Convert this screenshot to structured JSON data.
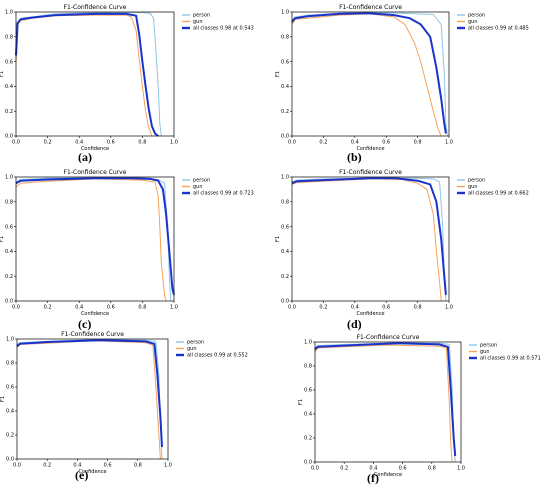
{
  "chart_data": [
    {
      "type": "line",
      "panel_label": "(a)",
      "title": "F1-Confidence Curve",
      "xlabel": "Confidence",
      "ylabel": "F1",
      "xlim": [
        0,
        1
      ],
      "ylim": [
        0,
        1
      ],
      "x_ticks": [
        "0.0",
        "0.2",
        "0.4",
        "0.6",
        "0.8",
        "1.0"
      ],
      "y_ticks": [
        "0.0",
        "0.2",
        "0.4",
        "0.6",
        "0.8",
        "1.0"
      ],
      "grid": false,
      "legend": "top-right",
      "series": [
        {
          "name": "person",
          "color": "#8ec5e6",
          "width": 1,
          "points": [
            [
              0.0,
              0.68
            ],
            [
              0.01,
              0.92
            ],
            [
              0.03,
              0.95
            ],
            [
              0.1,
              0.96
            ],
            [
              0.25,
              0.985
            ],
            [
              0.5,
              0.995
            ],
            [
              0.7,
              0.995
            ],
            [
              0.8,
              0.995
            ],
            [
              0.85,
              0.99
            ],
            [
              0.87,
              0.95
            ],
            [
              0.88,
              0.8
            ],
            [
              0.9,
              0.4
            ],
            [
              0.91,
              0.1
            ],
            [
              0.92,
              0.0
            ]
          ]
        },
        {
          "name": "gun",
          "color": "#f5a35b",
          "width": 1,
          "points": [
            [
              0.0,
              0.6
            ],
            [
              0.01,
              0.9
            ],
            [
              0.03,
              0.93
            ],
            [
              0.1,
              0.95
            ],
            [
              0.25,
              0.97
            ],
            [
              0.5,
              0.975
            ],
            [
              0.7,
              0.975
            ],
            [
              0.73,
              0.96
            ],
            [
              0.76,
              0.85
            ],
            [
              0.78,
              0.62
            ],
            [
              0.8,
              0.4
            ],
            [
              0.82,
              0.2
            ],
            [
              0.84,
              0.07
            ],
            [
              0.86,
              0.0
            ]
          ]
        },
        {
          "name": "all classes 0.98 at 0.543",
          "color": "#1a33cc",
          "width": 2,
          "points": [
            [
              0.0,
              0.65
            ],
            [
              0.01,
              0.91
            ],
            [
              0.03,
              0.94
            ],
            [
              0.1,
              0.955
            ],
            [
              0.25,
              0.975
            ],
            [
              0.5,
              0.985
            ],
            [
              0.7,
              0.985
            ],
            [
              0.76,
              0.97
            ],
            [
              0.78,
              0.82
            ],
            [
              0.8,
              0.6
            ],
            [
              0.82,
              0.4
            ],
            [
              0.84,
              0.22
            ],
            [
              0.86,
              0.08
            ],
            [
              0.88,
              0.02
            ],
            [
              0.9,
              0.0
            ]
          ]
        }
      ]
    },
    {
      "type": "line",
      "panel_label": "(b)",
      "title": "F1-Confidence Curve",
      "xlabel": "Confidence",
      "ylabel": "F1",
      "xlim": [
        0,
        1
      ],
      "ylim": [
        0,
        1
      ],
      "x_ticks": [
        "0.0",
        "0.2",
        "0.4",
        "0.6",
        "0.8",
        "1.0"
      ],
      "y_ticks": [
        "0.0",
        "0.2",
        "0.4",
        "0.6",
        "0.8",
        "1.0"
      ],
      "grid": false,
      "legend": "top-right",
      "series": [
        {
          "name": "person",
          "color": "#8ec5e6",
          "width": 1,
          "points": [
            [
              0.0,
              0.93
            ],
            [
              0.02,
              0.96
            ],
            [
              0.1,
              0.975
            ],
            [
              0.3,
              0.99
            ],
            [
              0.5,
              0.995
            ],
            [
              0.7,
              0.99
            ],
            [
              0.8,
              0.985
            ],
            [
              0.9,
              0.98
            ],
            [
              0.95,
              0.9
            ],
            [
              0.97,
              0.5
            ],
            [
              0.98,
              0.1
            ],
            [
              0.99,
              0.0
            ]
          ]
        },
        {
          "name": "gun",
          "color": "#f5a35b",
          "width": 1,
          "points": [
            [
              0.0,
              0.9
            ],
            [
              0.02,
              0.94
            ],
            [
              0.1,
              0.95
            ],
            [
              0.3,
              0.975
            ],
            [
              0.5,
              0.985
            ],
            [
              0.65,
              0.96
            ],
            [
              0.72,
              0.9
            ],
            [
              0.78,
              0.75
            ],
            [
              0.82,
              0.6
            ],
            [
              0.86,
              0.4
            ],
            [
              0.9,
              0.2
            ],
            [
              0.93,
              0.06
            ],
            [
              0.95,
              0.0
            ]
          ]
        },
        {
          "name": "all classes 0.99 at 0.485",
          "color": "#1a33cc",
          "width": 2,
          "points": [
            [
              0.0,
              0.92
            ],
            [
              0.02,
              0.95
            ],
            [
              0.1,
              0.965
            ],
            [
              0.3,
              0.985
            ],
            [
              0.485,
              0.99
            ],
            [
              0.65,
              0.975
            ],
            [
              0.75,
              0.95
            ],
            [
              0.82,
              0.9
            ],
            [
              0.88,
              0.8
            ],
            [
              0.92,
              0.55
            ],
            [
              0.95,
              0.3
            ],
            [
              0.97,
              0.1
            ],
            [
              0.98,
              0.02
            ]
          ]
        }
      ]
    },
    {
      "type": "line",
      "panel_label": "(c)",
      "title": "F1-Confidence Curve",
      "xlabel": "Confidence",
      "ylabel": "F1",
      "xlim": [
        0,
        1
      ],
      "ylim": [
        0,
        1
      ],
      "x_ticks": [
        "0.0",
        "0.2",
        "0.4",
        "0.6",
        "0.8",
        "1.0"
      ],
      "y_ticks": [
        "0.0",
        "0.2",
        "0.4",
        "0.6",
        "0.8",
        "1.0"
      ],
      "grid": false,
      "legend": "top-right",
      "series": [
        {
          "name": "person",
          "color": "#8ec5e6",
          "width": 1,
          "points": [
            [
              0.0,
              0.96
            ],
            [
              0.03,
              0.98
            ],
            [
              0.2,
              0.99
            ],
            [
              0.5,
              0.995
            ],
            [
              0.8,
              0.99
            ],
            [
              0.9,
              0.98
            ],
            [
              0.94,
              0.95
            ],
            [
              0.96,
              0.6
            ],
            [
              0.97,
              0.2
            ],
            [
              0.98,
              0.0
            ]
          ]
        },
        {
          "name": "gun",
          "color": "#f5a35b",
          "width": 1,
          "points": [
            [
              0.0,
              0.92
            ],
            [
              0.03,
              0.95
            ],
            [
              0.2,
              0.965
            ],
            [
              0.5,
              0.985
            ],
            [
              0.8,
              0.975
            ],
            [
              0.88,
              0.96
            ],
            [
              0.9,
              0.85
            ],
            [
              0.91,
              0.6
            ],
            [
              0.92,
              0.3
            ],
            [
              0.94,
              0.05
            ],
            [
              0.95,
              0.0
            ]
          ]
        },
        {
          "name": "all classes 0.99 at 0.723",
          "color": "#1a33cc",
          "width": 2,
          "points": [
            [
              0.0,
              0.95
            ],
            [
              0.03,
              0.97
            ],
            [
              0.2,
              0.98
            ],
            [
              0.5,
              0.99
            ],
            [
              0.723,
              0.99
            ],
            [
              0.85,
              0.985
            ],
            [
              0.9,
              0.97
            ],
            [
              0.93,
              0.9
            ],
            [
              0.95,
              0.7
            ],
            [
              0.97,
              0.4
            ],
            [
              0.99,
              0.1
            ],
            [
              1.0,
              0.05
            ]
          ]
        }
      ]
    },
    {
      "type": "line",
      "panel_label": "(d)",
      "title": "F1-Confidence Curve",
      "xlabel": "Confidence",
      "ylabel": "F1",
      "xlim": [
        0,
        1
      ],
      "ylim": [
        0,
        1
      ],
      "x_ticks": [
        "0.0",
        "0.2",
        "0.4",
        "0.6",
        "0.8",
        "1.0"
      ],
      "y_ticks": [
        "0.0",
        "0.2",
        "0.4",
        "0.6",
        "0.8",
        "1.0"
      ],
      "grid": false,
      "legend": "top-right",
      "series": [
        {
          "name": "person",
          "color": "#8ec5e6",
          "width": 1,
          "points": [
            [
              0.0,
              0.96
            ],
            [
              0.03,
              0.975
            ],
            [
              0.2,
              0.985
            ],
            [
              0.5,
              0.99
            ],
            [
              0.8,
              0.99
            ],
            [
              0.9,
              0.985
            ],
            [
              0.94,
              0.96
            ],
            [
              0.96,
              0.6
            ],
            [
              0.97,
              0.2
            ],
            [
              0.98,
              0.0
            ]
          ]
        },
        {
          "name": "gun",
          "color": "#f5a35b",
          "width": 1,
          "points": [
            [
              0.0,
              0.94
            ],
            [
              0.03,
              0.955
            ],
            [
              0.2,
              0.965
            ],
            [
              0.5,
              0.985
            ],
            [
              0.7,
              0.98
            ],
            [
              0.8,
              0.95
            ],
            [
              0.86,
              0.9
            ],
            [
              0.9,
              0.7
            ],
            [
              0.92,
              0.4
            ],
            [
              0.94,
              0.15
            ],
            [
              0.95,
              0.0
            ]
          ]
        },
        {
          "name": "all classes 0.99 at 0.662",
          "color": "#1a33cc",
          "width": 2,
          "points": [
            [
              0.0,
              0.95
            ],
            [
              0.03,
              0.965
            ],
            [
              0.2,
              0.975
            ],
            [
              0.5,
              0.99
            ],
            [
              0.662,
              0.99
            ],
            [
              0.8,
              0.97
            ],
            [
              0.88,
              0.94
            ],
            [
              0.92,
              0.8
            ],
            [
              0.95,
              0.5
            ],
            [
              0.97,
              0.2
            ],
            [
              0.98,
              0.05
            ]
          ]
        }
      ]
    },
    {
      "type": "line",
      "panel_label": "(e)",
      "title": "F1-Confidence Curve",
      "xlabel": "Confidence",
      "ylabel": "F1",
      "xlim": [
        0,
        1
      ],
      "ylim": [
        0,
        1
      ],
      "x_ticks": [
        "0.0",
        "0.2",
        "0.4",
        "0.6",
        "0.8",
        "1.0"
      ],
      "y_ticks": [
        "0.0",
        "0.2",
        "0.4",
        "0.6",
        "0.8",
        "1.0"
      ],
      "grid": false,
      "legend": "top-right",
      "series": [
        {
          "name": "person",
          "color": "#8ec5e6",
          "width": 1,
          "points": [
            [
              0.0,
              0.95
            ],
            [
              0.02,
              0.97
            ],
            [
              0.2,
              0.98
            ],
            [
              0.5,
              0.995
            ],
            [
              0.85,
              0.99
            ],
            [
              0.92,
              0.98
            ],
            [
              0.94,
              0.7
            ],
            [
              0.95,
              0.3
            ],
            [
              0.96,
              0.0
            ]
          ]
        },
        {
          "name": "gun",
          "color": "#f5a35b",
          "width": 1,
          "points": [
            [
              0.0,
              0.93
            ],
            [
              0.02,
              0.955
            ],
            [
              0.2,
              0.965
            ],
            [
              0.5,
              0.985
            ],
            [
              0.85,
              0.97
            ],
            [
              0.9,
              0.95
            ],
            [
              0.92,
              0.6
            ],
            [
              0.94,
              0.2
            ],
            [
              0.95,
              0.0
            ]
          ]
        },
        {
          "name": "all classes 0.99 at 0.552",
          "color": "#1a33cc",
          "width": 2,
          "points": [
            [
              0.0,
              0.94
            ],
            [
              0.02,
              0.96
            ],
            [
              0.2,
              0.975
            ],
            [
              0.552,
              0.99
            ],
            [
              0.85,
              0.98
            ],
            [
              0.91,
              0.96
            ],
            [
              0.93,
              0.7
            ],
            [
              0.95,
              0.35
            ],
            [
              0.96,
              0.1
            ]
          ]
        }
      ]
    },
    {
      "type": "line",
      "panel_label": "(f)",
      "title": "F1-Confidence Curve",
      "xlabel": "Confidence",
      "ylabel": "F1",
      "xlim": [
        0,
        1
      ],
      "ylim": [
        0,
        1
      ],
      "x_ticks": [
        "0.0",
        "0.2",
        "0.4",
        "0.6",
        "0.8",
        "1.0"
      ],
      "y_ticks": [
        "0.0",
        "0.2",
        "0.4",
        "0.6",
        "0.8",
        "1.0"
      ],
      "grid": false,
      "legend": "top-right",
      "series": [
        {
          "name": "person",
          "color": "#8ec5e6",
          "width": 1,
          "points": [
            [
              0.0,
              0.95
            ],
            [
              0.02,
              0.97
            ],
            [
              0.2,
              0.98
            ],
            [
              0.5,
              0.99
            ],
            [
              0.85,
              0.99
            ],
            [
              0.92,
              0.98
            ],
            [
              0.94,
              0.6
            ],
            [
              0.95,
              0.2
            ],
            [
              0.96,
              0.0
            ]
          ]
        },
        {
          "name": "gun",
          "color": "#f5a35b",
          "width": 1,
          "points": [
            [
              0.0,
              0.92
            ],
            [
              0.02,
              0.95
            ],
            [
              0.2,
              0.96
            ],
            [
              0.5,
              0.975
            ],
            [
              0.85,
              0.965
            ],
            [
              0.9,
              0.95
            ],
            [
              0.92,
              0.5
            ],
            [
              0.93,
              0.15
            ],
            [
              0.94,
              0.0
            ]
          ]
        },
        {
          "name": "all classes 0.99 at 0.571",
          "color": "#1a33cc",
          "width": 2,
          "points": [
            [
              0.0,
              0.94
            ],
            [
              0.02,
              0.96
            ],
            [
              0.2,
              0.97
            ],
            [
              0.571,
              0.99
            ],
            [
              0.85,
              0.98
            ],
            [
              0.91,
              0.96
            ],
            [
              0.93,
              0.6
            ],
            [
              0.95,
              0.2
            ],
            [
              0.96,
              0.05
            ]
          ]
        }
      ]
    }
  ]
}
